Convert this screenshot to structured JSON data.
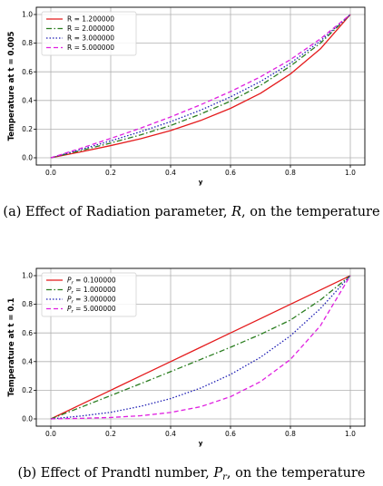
{
  "chart_data": [
    {
      "type": "line",
      "panel": "a",
      "ylabel": "Temperature at t = 0.005",
      "xlabel": "y",
      "xlim": [
        0.0,
        1.0
      ],
      "ylim": [
        0.0,
        1.0
      ],
      "xticks": [
        "0.0",
        "0.2",
        "0.4",
        "0.6",
        "0.8",
        "1.0"
      ],
      "yticks": [
        "0.0",
        "0.2",
        "0.4",
        "0.6",
        "0.8",
        "1.0"
      ],
      "grid": true,
      "legend_position": "top-left",
      "x": [
        0.0,
        0.1,
        0.2,
        0.3,
        0.4,
        0.5,
        0.6,
        0.7,
        0.8,
        0.9,
        1.0
      ],
      "series": [
        {
          "name": "R = 1.200000",
          "color": "#e41a1c",
          "style": "solid",
          "values": [
            0.0,
            0.041,
            0.085,
            0.133,
            0.19,
            0.26,
            0.345,
            0.45,
            0.585,
            0.76,
            1.0
          ]
        },
        {
          "name": "R = 2.000000",
          "color": "#2a7d1f",
          "style": "dashdot",
          "values": [
            0.0,
            0.05,
            0.103,
            0.16,
            0.225,
            0.305,
            0.395,
            0.505,
            0.64,
            0.8,
            1.0
          ]
        },
        {
          "name": "R = 3.000000",
          "color": "#1f1fb4",
          "style": "dotted",
          "values": [
            0.0,
            0.058,
            0.118,
            0.182,
            0.252,
            0.332,
            0.425,
            0.532,
            0.66,
            0.815,
            1.0
          ]
        },
        {
          "name": "R = 5.000000",
          "color": "#e020e0",
          "style": "dashed",
          "values": [
            0.0,
            0.066,
            0.135,
            0.207,
            0.285,
            0.37,
            0.462,
            0.565,
            0.685,
            0.83,
            1.0
          ]
        }
      ],
      "caption": {
        "prefix": "(a)  Effect of Radiation parameter, ",
        "symbol": "R",
        "suffix": ", on the temperature"
      }
    },
    {
      "type": "line",
      "panel": "b",
      "ylabel": "Temperature at t = 0.1",
      "xlabel": "y",
      "xlim": [
        0.0,
        1.0
      ],
      "ylim": [
        0.0,
        1.0
      ],
      "xticks": [
        "0.0",
        "0.2",
        "0.4",
        "0.6",
        "0.8",
        "1.0"
      ],
      "yticks": [
        "0.0",
        "0.2",
        "0.4",
        "0.6",
        "0.8",
        "1.0"
      ],
      "grid": true,
      "legend_position": "top-left",
      "x": [
        0.0,
        0.1,
        0.2,
        0.3,
        0.4,
        0.5,
        0.6,
        0.7,
        0.8,
        0.9,
        1.0
      ],
      "series": [
        {
          "name": "Pr = 0.100000",
          "label_base": "P",
          "label_sub": "r",
          "label_value": " = 0.100000",
          "color": "#e41a1c",
          "style": "solid",
          "values": [
            0.0,
            0.1,
            0.2,
            0.3,
            0.4,
            0.5,
            0.6,
            0.7,
            0.8,
            0.9,
            1.0
          ]
        },
        {
          "name": "Pr = 1.000000",
          "label_base": "P",
          "label_sub": "r",
          "label_value": " = 1.000000",
          "color": "#2a7d1f",
          "style": "dashdot",
          "values": [
            0.0,
            0.081,
            0.163,
            0.246,
            0.33,
            0.415,
            0.5,
            0.59,
            0.69,
            0.83,
            1.0
          ]
        },
        {
          "name": "Pr = 3.000000",
          "label_base": "P",
          "label_sub": "r",
          "label_value": " = 3.000000",
          "color": "#1f1fb4",
          "style": "dotted",
          "values": [
            0.0,
            0.02,
            0.046,
            0.088,
            0.142,
            0.215,
            0.31,
            0.43,
            0.58,
            0.77,
            1.0
          ]
        },
        {
          "name": "Pr = 5.000000",
          "label_base": "P",
          "label_sub": "r",
          "label_value": " = 5.000000",
          "color": "#e020e0",
          "style": "dashed",
          "values": [
            0.0,
            0.004,
            0.01,
            0.022,
            0.045,
            0.085,
            0.155,
            0.26,
            0.415,
            0.65,
            1.0
          ]
        }
      ],
      "caption": {
        "prefix": "(b)  Effect of Prandtl number, ",
        "symbol": "P",
        "symbol_sub": "r",
        "suffix": ", on the temperature"
      }
    }
  ]
}
